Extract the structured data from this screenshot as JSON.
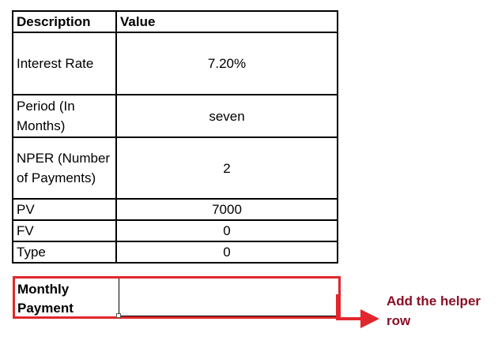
{
  "table": {
    "headers": {
      "description": "Description",
      "value": "Value"
    },
    "rows": [
      {
        "description": "Interest Rate",
        "value": "7.20%"
      },
      {
        "description": "Period (In Months)",
        "value": "seven"
      },
      {
        "description": "NPER (Number of Payments)",
        "value": "2"
      },
      {
        "description": "PV",
        "value": "7000"
      },
      {
        "description": "FV",
        "value": "0"
      },
      {
        "description": "Type",
        "value": "0"
      }
    ]
  },
  "helper_row": {
    "label": "Monthly Payment",
    "value": ""
  },
  "callout": {
    "text": "Add the helper row"
  },
  "colors": {
    "highlight_border": "#e1262d",
    "callout_text": "#8b0f26",
    "grid_line": "#000000"
  }
}
